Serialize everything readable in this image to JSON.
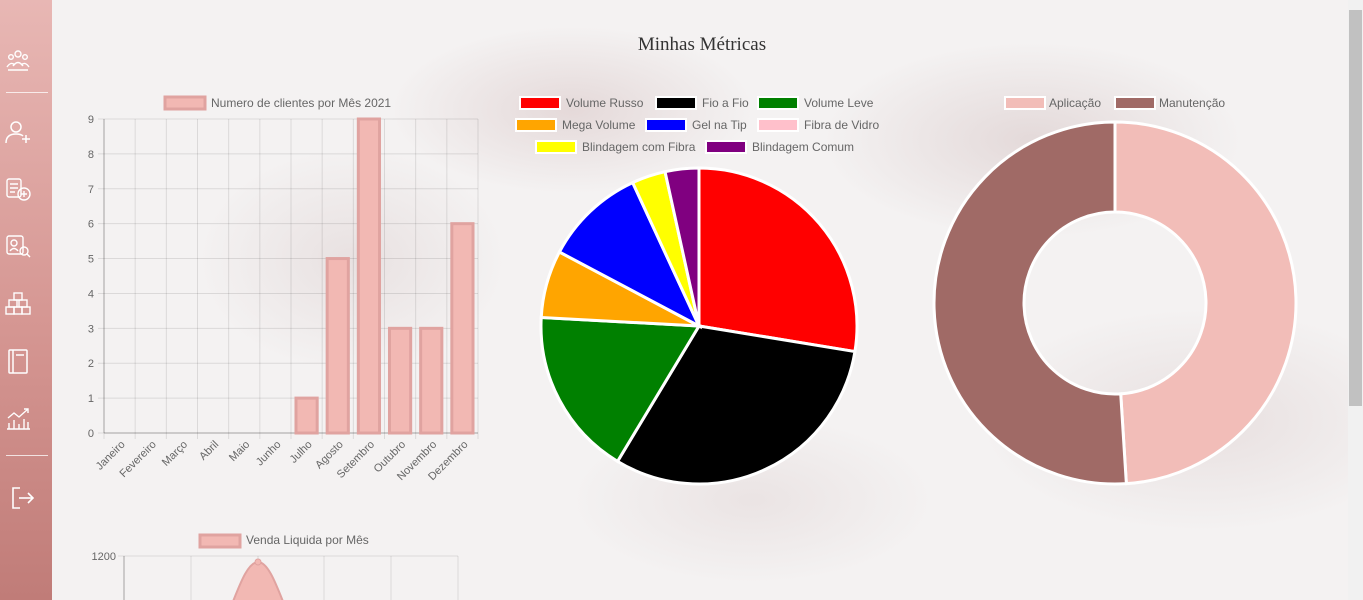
{
  "page": {
    "title": "Minhas Métricas"
  },
  "sidebar": {
    "items": [
      {
        "icon": "team-icon"
      },
      {
        "icon": "add-user-icon"
      },
      {
        "icon": "add-service-icon"
      },
      {
        "icon": "client-search-icon"
      },
      {
        "icon": "stock-boxes-icon"
      },
      {
        "icon": "book-icon"
      },
      {
        "icon": "metrics-icon"
      }
    ],
    "logout_icon": "logout-icon"
  },
  "chart_data": [
    {
      "type": "bar",
      "series_name": "Numero de clientes por Mês 2021",
      "categories": [
        "Janeiro",
        "Fevereiro",
        "Março",
        "Abril",
        "Maio",
        "Junho",
        "Julho",
        "Agosto",
        "Setembro",
        "Outubro",
        "Novembro",
        "Dezembro"
      ],
      "values": [
        0,
        0,
        0,
        0,
        0,
        0,
        1,
        5,
        9,
        3,
        3,
        6
      ],
      "ylim": [
        0,
        9
      ],
      "yticks": [
        0,
        1,
        2,
        3,
        4,
        5,
        6,
        7,
        8,
        9
      ],
      "color": "#f2b8b3",
      "border_color": "#e0a3a0",
      "grid": true
    },
    {
      "type": "pie",
      "labels": [
        "Volume Russo",
        "Fio a Fio",
        "Volume Leve",
        "Mega Volume",
        "Gel na Tip",
        "Fibra de Vidro",
        "Blindagem com Fibra",
        "Blindagem Comum"
      ],
      "values": [
        8,
        9,
        5,
        2,
        3,
        0,
        1,
        1
      ],
      "colors": [
        "#ff0000",
        "#000000",
        "#008000",
        "#ffa500",
        "#0000ff",
        "#ffc0cb",
        "#ffff00",
        "#800080"
      ],
      "legend": "top"
    },
    {
      "type": "doughnut",
      "labels": [
        "Aplicação",
        "Manutenção"
      ],
      "values": [
        49,
        51
      ],
      "colors": [
        "#f2bdb8",
        "#a06a66"
      ],
      "legend": "top"
    },
    {
      "type": "area",
      "series_name": "Venda Liquida por Mês",
      "yticks": [
        1200
      ],
      "color": "#f2b8b3",
      "border_color": "#e0a3a0"
    }
  ]
}
